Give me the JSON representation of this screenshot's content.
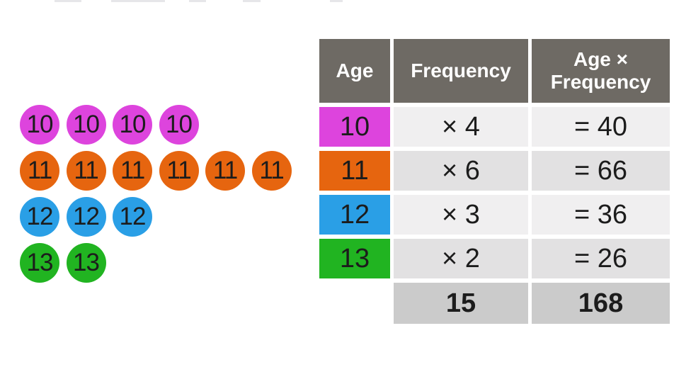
{
  "colors": {
    "header_bg": "#6E6A64",
    "header_text": "#FFFFFF",
    "row_light": "#F0EFF0",
    "row_dark": "#E2E1E2",
    "totals_bg": "#CBCBCB",
    "text_dark": "#1C1C1C",
    "age_10": "#DD44DD",
    "age_11": "#E6650F",
    "age_12": "#2A9FE6",
    "age_13": "#21B421"
  },
  "pictograph": {
    "rows": [
      {
        "label": "10",
        "count": 4,
        "color": "#DD44DD"
      },
      {
        "label": "11",
        "count": 6,
        "color": "#E6650F"
      },
      {
        "label": "12",
        "count": 3,
        "color": "#2A9FE6"
      },
      {
        "label": "13",
        "count": 2,
        "color": "#21B421"
      }
    ]
  },
  "table": {
    "header": {
      "age": "Age",
      "frequency": "Frequency",
      "product": "Age × Frequency"
    },
    "rows": [
      {
        "age": "10",
        "age_color": "#DD44DD",
        "frequency": "× 4",
        "product": "= 40"
      },
      {
        "age": "11",
        "age_color": "#E6650F",
        "frequency": "× 6",
        "product": "= 66"
      },
      {
        "age": "12",
        "age_color": "#2A9FE6",
        "frequency": "× 3",
        "product": "= 36"
      },
      {
        "age": "13",
        "age_color": "#21B421",
        "frequency": "× 2",
        "product": "= 26"
      }
    ],
    "totals": {
      "frequency": "15",
      "product": "168"
    }
  },
  "chart_data": {
    "type": "table",
    "title": "",
    "columns": [
      "Age",
      "Frequency",
      "Age × Frequency"
    ],
    "ages": [
      10,
      11,
      12,
      13
    ],
    "frequencies": [
      4,
      6,
      3,
      2
    ],
    "age_times_frequency": [
      40,
      66,
      36,
      26
    ],
    "total_frequency": 15,
    "total_age_times_frequency": 168,
    "pictograph_counts": {
      "10": 4,
      "11": 6,
      "12": 3,
      "13": 2
    },
    "legend_position": "none",
    "grid": false
  }
}
